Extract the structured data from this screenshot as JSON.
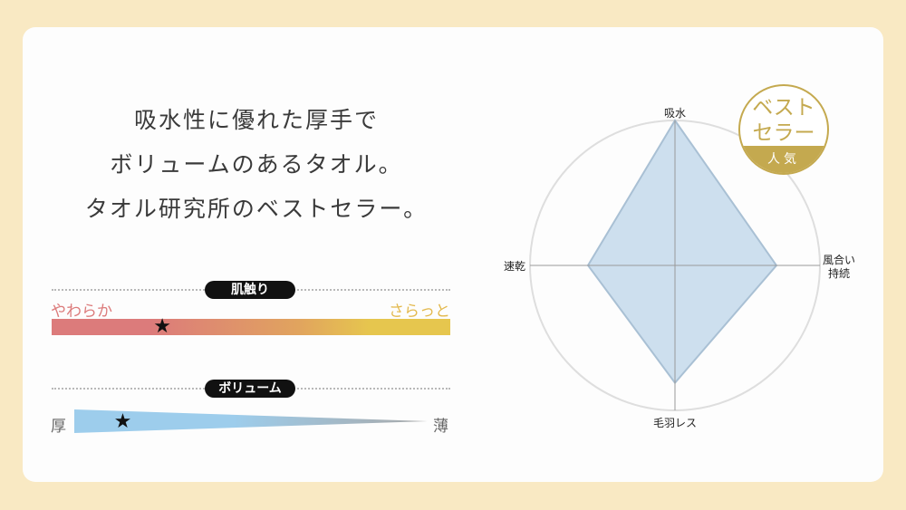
{
  "headline": [
    "吸水性に優れた厚手で",
    "ボリュームのあるタオル。",
    "タオル研究所のベストセラー。"
  ],
  "texture": {
    "title": "肌触り",
    "left_label": "やわらか",
    "right_label": "さらっと",
    "value_percent": 28,
    "colors": {
      "left": "#dc7b7b",
      "mid": "#e1a45e",
      "right": "#e6c64e"
    }
  },
  "volume": {
    "title": "ボリューム",
    "left_label": "厚",
    "right_label": "薄",
    "value_percent": 14,
    "colors": {
      "left": "#9dcdec",
      "right": "#a8a8a8"
    }
  },
  "badge": {
    "line1": "ベスト",
    "line2": "セラー",
    "sub": "人気",
    "color": "#c4a94f"
  },
  "chart_data": {
    "type": "radar",
    "axes": [
      "吸水",
      "風合い持続",
      "毛羽レス",
      "速乾"
    ],
    "axis_labels": {
      "top": "吸水",
      "right_line1": "風合い",
      "right_line2": "持続",
      "bottom": "毛羽レス",
      "left": "速乾"
    },
    "values": [
      1.0,
      0.7,
      0.81,
      0.6
    ],
    "range": [
      0,
      1
    ],
    "fill_color": "#cddfee",
    "stroke_color": "#a9c0d4"
  }
}
